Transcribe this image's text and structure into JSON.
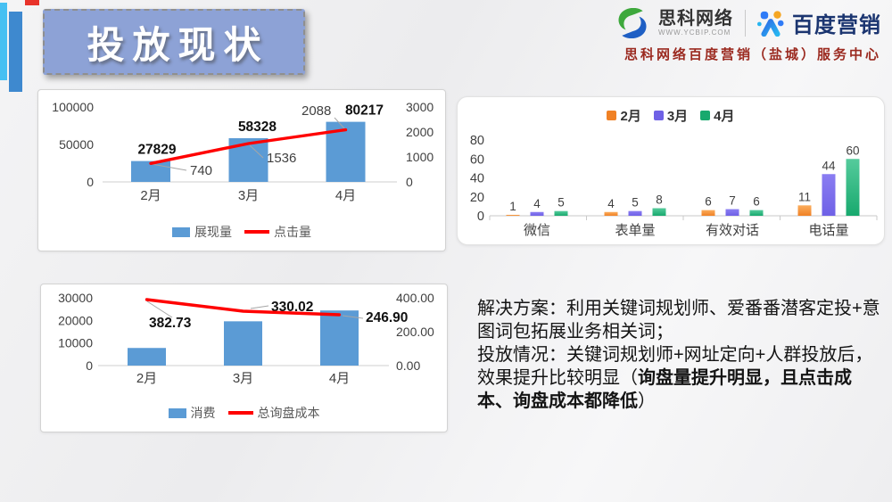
{
  "title": "投放现状",
  "header": {
    "sico_name": "思科网络",
    "sico_url": "WWW.YCBIP.COM",
    "baidu_name": "百度营销",
    "subtitle": "思科网络百度营销（盐城）服务中心"
  },
  "notes": {
    "solution": "解决方案：利用关键词规划师、爱番番潜客定投+意图词包拓展业务相关词；",
    "situation_prefix": "投放情况：关键词规划师+网址定向+人群投放后，效果提升比较明显（",
    "situation_bold": "询盘量提升明显，且点击成本、询盘成本都降低",
    "situation_suffix": "）"
  },
  "chart_data": [
    {
      "id": "exposure_clicks",
      "type": "bar",
      "subtype": "combo bar+line, dual axis",
      "categories": [
        "2月",
        "3月",
        "4月"
      ],
      "bar_series": {
        "name": "展现量",
        "values": [
          27829,
          58328,
          80217
        ],
        "labels": [
          "27829",
          "58328",
          "80217"
        ],
        "color": "#5B9BD5"
      },
      "line_series": {
        "name": "点击量",
        "values": [
          740,
          1536,
          2088
        ],
        "labels": [
          "740",
          "1536",
          "2088"
        ],
        "color": "#FF0000"
      },
      "left_axis": {
        "ticks": [
          0,
          50000,
          100000
        ],
        "max": 100000
      },
      "right_axis": {
        "ticks": [
          0,
          1000,
          2000,
          3000
        ],
        "max": 3000
      },
      "legend_position": "bottom",
      "grid": false
    },
    {
      "id": "conversion_channels",
      "type": "bar",
      "subtype": "grouped bars",
      "categories": [
        "微信",
        "表单量",
        "有效对话",
        "电话量"
      ],
      "series": [
        {
          "name": "2月",
          "values": [
            1,
            4,
            6,
            11
          ],
          "color": "#F08125",
          "color_light": "#FBAD5D"
        },
        {
          "name": "3月",
          "values": [
            4,
            5,
            7,
            44
          ],
          "color": "#6F61E6",
          "color_light": "#8A7DF2"
        },
        {
          "name": "4月",
          "values": [
            5,
            8,
            6,
            60
          ],
          "color": "#18A96E",
          "color_light": "#55CB9C"
        }
      ],
      "y_axis": {
        "ticks": [
          0,
          20,
          40,
          60,
          80
        ],
        "max": 80
      },
      "legend_position": "top",
      "grid": false
    },
    {
      "id": "spend_inquiry_cost",
      "type": "bar",
      "subtype": "combo bar+line, dual axis",
      "categories": [
        "2月",
        "3月",
        "4月"
      ],
      "bar_series": {
        "name": "消费",
        "values": [
          7800,
          19600,
          24400
        ],
        "color": "#5B9BD5"
      },
      "line_series": {
        "name": "总询盘成本",
        "values": [
          382.73,
          330.02,
          246.9
        ],
        "labels": [
          "382.73",
          "330.02",
          "246.90"
        ],
        "color": "#FF0000"
      },
      "left_axis": {
        "ticks": [
          0,
          10000,
          20000,
          30000
        ],
        "max": 30000
      },
      "right_axis": {
        "ticks": [
          "0.00",
          "200.00",
          "400.00"
        ],
        "max": 400
      },
      "legend_position": "bottom",
      "grid": false
    }
  ]
}
